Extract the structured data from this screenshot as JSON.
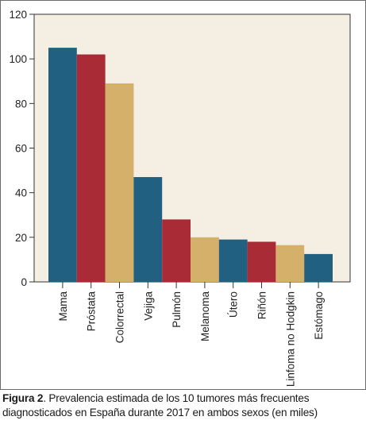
{
  "chart_data": {
    "type": "bar",
    "categories": [
      "Mama",
      "Próstata",
      "Colorrectal",
      "Vejiga",
      "Pulmón",
      "Melanoma",
      "Útero",
      "Riñón",
      "Linfoma no Hodgkin",
      "Estómago"
    ],
    "values": [
      105,
      102,
      89,
      47,
      28,
      20,
      19,
      18,
      16.5,
      12.5
    ],
    "bar_colors": [
      "#216080",
      "#a92b35",
      "#d5b06a",
      "#216080",
      "#a92b35",
      "#d5b06a",
      "#216080",
      "#a92b35",
      "#d5b06a",
      "#216080"
    ],
    "yticks": [
      "0",
      "20",
      "40",
      "60",
      "80",
      "100",
      "120"
    ],
    "ylim": [
      0,
      120
    ],
    "grid": false,
    "title": "",
    "xlabel": "",
    "ylabel": ""
  },
  "caption": {
    "label": "Figura 2",
    "text": ". Prevalencia estimada de los 10 tumores más frecuentes diagnosticados en España durante 2017 en ambos sexos (en miles)"
  },
  "colors": {
    "plot_background": "#f5eee3",
    "axis": "#333333"
  }
}
